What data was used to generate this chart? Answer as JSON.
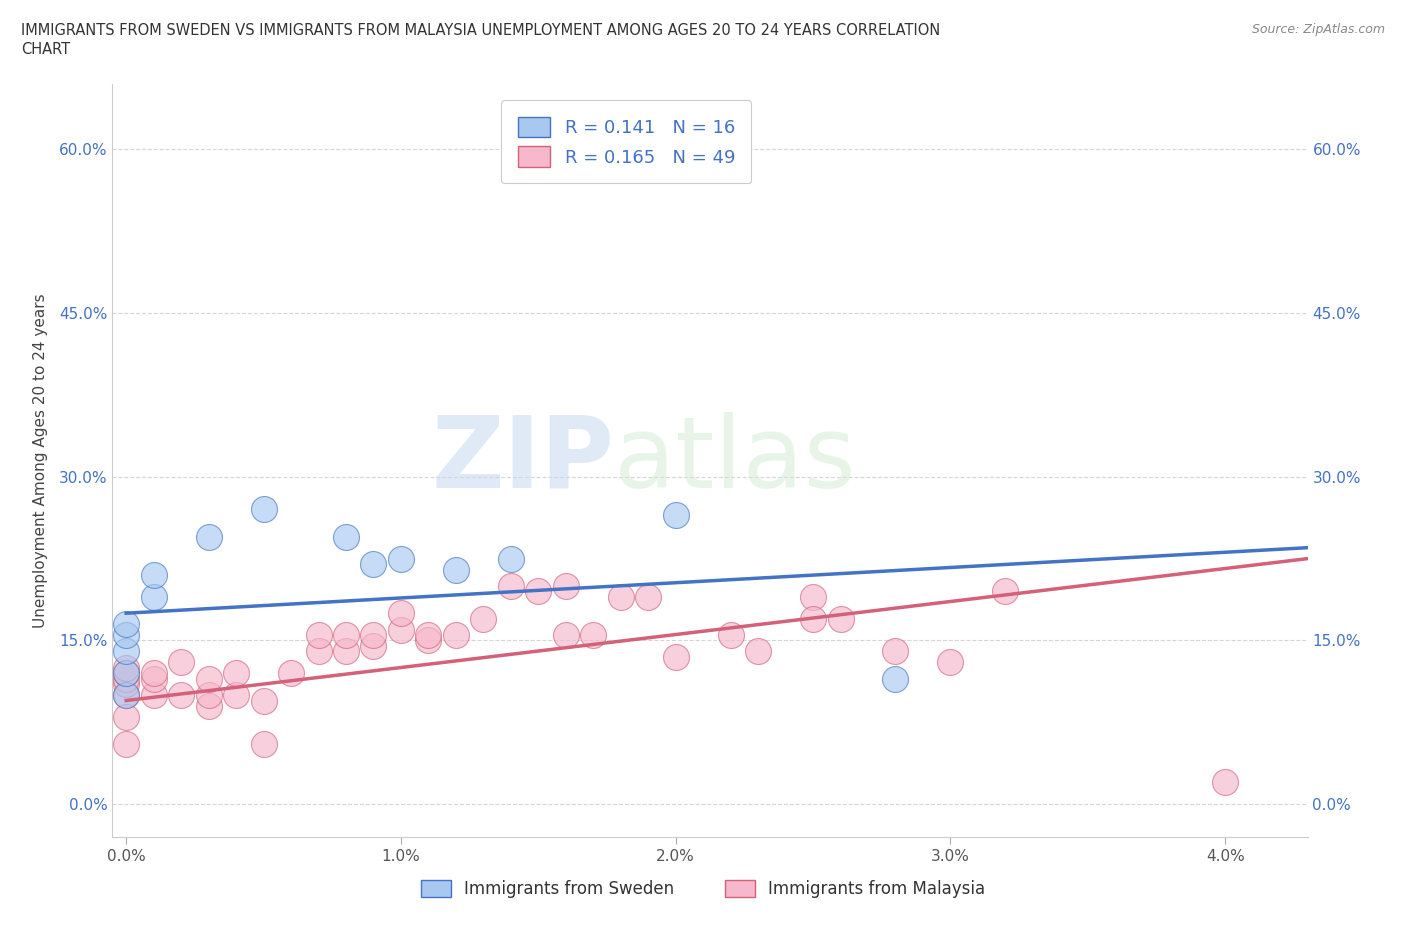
{
  "title_line1": "IMMIGRANTS FROM SWEDEN VS IMMIGRANTS FROM MALAYSIA UNEMPLOYMENT AMONG AGES 20 TO 24 YEARS CORRELATION",
  "title_line2": "CHART",
  "source": "Source: ZipAtlas.com",
  "ylabel_label": "Unemployment Among Ages 20 to 24 years",
  "x_ticks": [
    0.0,
    0.01,
    0.02,
    0.03,
    0.04
  ],
  "x_tick_labels": [
    "0.0%",
    "1.0%",
    "2.0%",
    "3.0%",
    "4.0%"
  ],
  "y_ticks": [
    0.0,
    0.15,
    0.3,
    0.45,
    0.6
  ],
  "y_tick_labels": [
    "0.0%",
    "15.0%",
    "30.0%",
    "45.0%",
    "60.0%"
  ],
  "xlim": [
    -0.0005,
    0.043
  ],
  "ylim": [
    -0.03,
    0.66
  ],
  "sweden_color": "#a8c8f0",
  "malaysia_color": "#f5b8cc",
  "sweden_line_color": "#4472c4",
  "malaysia_line_color": "#d4607a",
  "R_sweden": 0.141,
  "N_sweden": 16,
  "R_malaysia": 0.165,
  "N_malaysia": 49,
  "legend_label_sweden": "Immigrants from Sweden",
  "legend_label_malaysia": "Immigrants from Malaysia",
  "watermark_zip": "ZIP",
  "watermark_atlas": "atlas",
  "sweden_points_x": [
    0.0,
    0.0,
    0.0,
    0.0,
    0.0,
    0.001,
    0.001,
    0.003,
    0.005,
    0.008,
    0.009,
    0.01,
    0.012,
    0.014,
    0.02,
    0.028
  ],
  "sweden_points_y": [
    0.1,
    0.12,
    0.14,
    0.155,
    0.165,
    0.19,
    0.21,
    0.245,
    0.27,
    0.245,
    0.22,
    0.225,
    0.215,
    0.225,
    0.265,
    0.115
  ],
  "malaysia_points_x": [
    0.0,
    0.0,
    0.0,
    0.0,
    0.0,
    0.0,
    0.0,
    0.001,
    0.001,
    0.001,
    0.002,
    0.002,
    0.003,
    0.003,
    0.003,
    0.004,
    0.004,
    0.005,
    0.005,
    0.006,
    0.007,
    0.007,
    0.008,
    0.008,
    0.009,
    0.009,
    0.01,
    0.01,
    0.011,
    0.011,
    0.012,
    0.013,
    0.014,
    0.015,
    0.016,
    0.016,
    0.017,
    0.018,
    0.019,
    0.02,
    0.022,
    0.023,
    0.025,
    0.025,
    0.026,
    0.028,
    0.03,
    0.032,
    0.04
  ],
  "malaysia_points_y": [
    0.1,
    0.11,
    0.115,
    0.12,
    0.125,
    0.055,
    0.08,
    0.1,
    0.115,
    0.12,
    0.1,
    0.13,
    0.09,
    0.1,
    0.115,
    0.1,
    0.12,
    0.055,
    0.095,
    0.12,
    0.14,
    0.155,
    0.14,
    0.155,
    0.145,
    0.155,
    0.16,
    0.175,
    0.15,
    0.155,
    0.155,
    0.17,
    0.2,
    0.195,
    0.155,
    0.2,
    0.155,
    0.19,
    0.19,
    0.135,
    0.155,
    0.14,
    0.19,
    0.17,
    0.17,
    0.14,
    0.13,
    0.195,
    0.02
  ],
  "sweden_trend_x0": 0.0,
  "sweden_trend_y0": 0.175,
  "sweden_trend_x1": 0.043,
  "sweden_trend_y1": 0.235,
  "malaysia_trend_x0": 0.0,
  "malaysia_trend_y0": 0.095,
  "malaysia_trend_x1": 0.043,
  "malaysia_trend_y1": 0.225,
  "grid_color": "#cccccc",
  "background_color": "#ffffff",
  "text_color_title": "#333333",
  "tick_color_blue": "#4472c4",
  "tick_color_dark": "#555555"
}
